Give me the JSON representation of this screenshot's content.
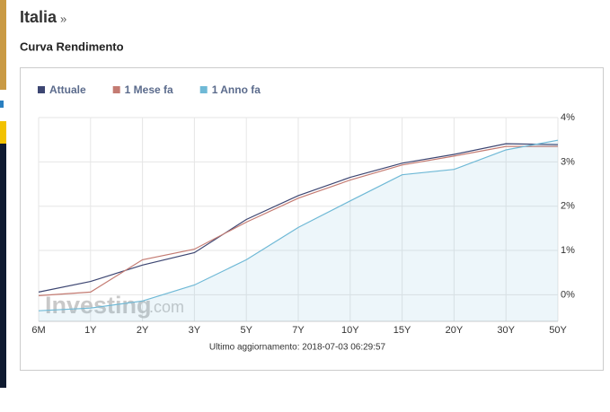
{
  "page": {
    "heading": "Italia",
    "heading_link": "»"
  },
  "chart_data": {
    "type": "line",
    "title": "Curva Rendimento",
    "categories": [
      "6M",
      "1Y",
      "2Y",
      "3Y",
      "5Y",
      "7Y",
      "10Y",
      "15Y",
      "20Y",
      "30Y",
      "50Y"
    ],
    "series": [
      {
        "name": "Attuale",
        "color": "#3d4672",
        "values": [
          0.06,
          0.3,
          0.67,
          0.95,
          1.7,
          2.24,
          2.65,
          2.97,
          3.17,
          3.41,
          3.39
        ]
      },
      {
        "name": "1 Mese fa",
        "color": "#c47b72",
        "values": [
          -0.02,
          0.06,
          0.79,
          1.03,
          1.64,
          2.18,
          2.59,
          2.93,
          3.13,
          3.35,
          3.35
        ]
      },
      {
        "name": "1 Anno fa",
        "color": "#6fb9d6",
        "area": true,
        "values": [
          -0.36,
          -0.3,
          -0.14,
          0.22,
          0.79,
          1.52,
          2.12,
          2.71,
          2.83,
          3.27,
          3.49
        ]
      }
    ],
    "ylim": [
      -0.6,
      4
    ],
    "yticks": [
      {
        "value": 0,
        "label": "0%"
      },
      {
        "value": 1,
        "label": "1%"
      },
      {
        "value": 2,
        "label": "2%"
      },
      {
        "value": 3,
        "label": "3%"
      },
      {
        "value": 4,
        "label": "4%"
      }
    ],
    "grid": true,
    "legend": "top-left",
    "watermark": "Investing",
    "watermark_suffix": ".com",
    "footnote": "Ultimo aggiornamento: 2018-07-03 06:29:57"
  }
}
